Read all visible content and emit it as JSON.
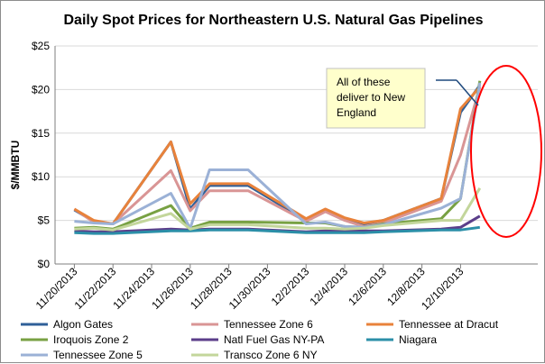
{
  "chart_data": {
    "type": "line",
    "title": "Daily Spot Prices for Northeastern U.S. Natural Gas Pipelines",
    "ylabel": "$/MMBTU",
    "ylim": [
      0,
      25
    ],
    "yticks": [
      "$0",
      "$5",
      "$10",
      "$15",
      "$20",
      "$25"
    ],
    "ytick_values": [
      0,
      5,
      10,
      15,
      20,
      25
    ],
    "x_dates": [
      "11/20/2013",
      "11/21/2013",
      "11/22/2013",
      "11/25/2013",
      "11/26/2013",
      "11/27/2013",
      "11/29/2013",
      "12/2/2013",
      "12/3/2013",
      "12/4/2013",
      "12/5/2013",
      "12/6/2013",
      "12/9/2013",
      "12/10/2013",
      "12/11/2013",
      "12/12/2013",
      "12/13/2013"
    ],
    "x_ticks": [
      "11/20/2013",
      "11/22/2013",
      "11/24/2013",
      "11/26/2013",
      "11/28/2013",
      "11/30/2013",
      "12/2/2013",
      "12/4/2013",
      "12/6/2013",
      "12/8/2013",
      "12/10/2013"
    ],
    "grid": "horizontal",
    "legend_position": "bottom",
    "series": [
      {
        "name": "Algon Gates",
        "color": "#2f5f98",
        "values": [
          6.2,
          4.9,
          4.6,
          14.0,
          6.3,
          9.0,
          9.0,
          5.0,
          6.2,
          5.2,
          4.6,
          5.0,
          7.5,
          17.4,
          20.5,
          null,
          null
        ]
      },
      {
        "name": "Tennessee Zone 6",
        "color": "#d99595",
        "values": [
          6.3,
          4.8,
          4.6,
          10.7,
          6.1,
          8.4,
          8.4,
          4.9,
          6.0,
          5.0,
          4.3,
          4.7,
          7.2,
          12.5,
          20.3,
          null,
          null
        ]
      },
      {
        "name": "Tennessee at Dracut",
        "color": "#e8823b",
        "values": [
          6.3,
          5.0,
          4.6,
          14.0,
          6.9,
          9.2,
          9.2,
          5.2,
          6.3,
          5.3,
          4.7,
          5.0,
          7.5,
          17.8,
          20.3,
          null,
          null
        ]
      },
      {
        "name": "Iroquois Zone 2",
        "color": "#78a143",
        "values": [
          4.1,
          4.2,
          4.0,
          6.7,
          4.1,
          4.8,
          4.8,
          4.7,
          4.7,
          4.3,
          4.2,
          4.6,
          5.2,
          7.5,
          21.0,
          null,
          null
        ]
      },
      {
        "name": "Natl Fuel Gas NY-PA",
        "color": "#5b3e8a",
        "values": [
          3.8,
          3.7,
          3.7,
          4.0,
          3.9,
          4.0,
          4.0,
          3.7,
          3.8,
          3.8,
          3.8,
          3.8,
          4.0,
          4.2,
          5.5,
          null,
          null
        ]
      },
      {
        "name": "Niagara",
        "color": "#2b8fa8",
        "values": [
          3.6,
          3.5,
          3.5,
          3.8,
          3.8,
          3.9,
          3.9,
          3.6,
          3.6,
          3.6,
          3.6,
          3.7,
          3.9,
          3.9,
          4.2,
          null,
          null
        ]
      },
      {
        "name": "Tennessee Zone 5",
        "color": "#9bb1d6",
        "values": [
          4.9,
          4.7,
          4.6,
          8.1,
          4.1,
          10.8,
          10.8,
          4.6,
          4.8,
          4.3,
          4.2,
          4.5,
          6.4,
          7.5,
          20.8,
          null,
          null
        ]
      },
      {
        "name": "Transco Zone 6 NY",
        "color": "#c3d69b",
        "values": [
          4.0,
          4.1,
          3.9,
          5.8,
          4.0,
          4.5,
          4.5,
          4.1,
          4.1,
          4.0,
          4.1,
          4.4,
          5.0,
          5.0,
          8.7,
          null,
          null
        ]
      }
    ],
    "annotation": {
      "lines": [
        "All of these",
        "deliver to New",
        "England"
      ]
    }
  },
  "colors": {
    "grid": "#d9d9d9",
    "axis": "#7f7f7f",
    "callout_fill": "#ffffcc",
    "callout_border": "#c0c0c0",
    "highlight_ellipse": "#ff0000",
    "callout_arrow": "#1f497d"
  }
}
